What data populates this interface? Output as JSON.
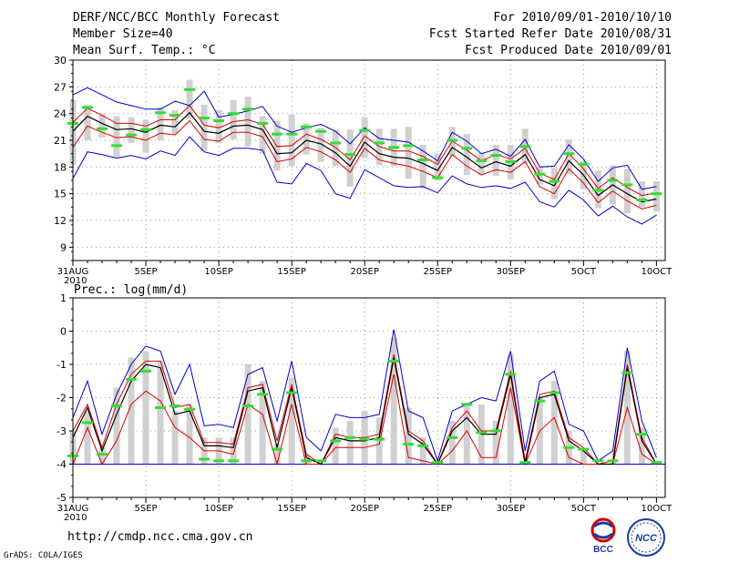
{
  "header": {
    "title": "DERF/NCC/BCC Monthly Forecast",
    "member_size": "Member Size=40",
    "variable": "Mean Surf. Temp.: °C",
    "period": "For 2010/09/01-2010/10/10",
    "fcst_started": "Fcst Started Refer Date 2010/08/31",
    "fcst_produced": "Fcst Produced Date 2010/09/01"
  },
  "footer": {
    "url": "http://cmdp.ncc.cma.gov.cn",
    "grads": "GrADS: COLA/IGES",
    "logo_left_text": "BCC",
    "logo_right_text": "NCC"
  },
  "colors": {
    "mean": "#000000",
    "spread": "#dd0000",
    "envelope": "#0000cc",
    "bar": "#d0d0d0",
    "observed": "#33dd33"
  },
  "chart_data": [
    {
      "type": "line",
      "title": "Mean Surf. Temp.: °C",
      "x_tick_labels": [
        "31AUG\n2010",
        "5SEP",
        "10SEP",
        "15SEP",
        "20SEP",
        "25SEP",
        "30SEP",
        "5OCT",
        "10OCT"
      ],
      "x_ticks_at_day": [
        0,
        5,
        10,
        15,
        20,
        25,
        30,
        35,
        40
      ],
      "ylim": [
        7.5,
        30
      ],
      "y_ticks": [
        9,
        12,
        15,
        18,
        21,
        24,
        27,
        30
      ],
      "grid": true,
      "series": [
        {
          "name": "ensemble_max",
          "values": [
            16.7,
            19.7,
            19.4,
            19.0,
            19.3,
            18.9,
            19.8,
            19.3,
            21.4,
            19.7,
            19.3,
            20.1,
            20.1,
            19.9,
            16.3,
            16.1,
            18.4,
            17.6,
            15.0,
            14.5,
            17.7,
            16.8,
            15.9,
            15.7,
            15.8,
            15.1,
            17.0,
            16.1,
            15.7,
            15.9,
            15.6,
            16.3,
            14.1,
            13.5,
            15.4,
            14.3,
            12.5,
            13.6,
            12.4,
            11.6,
            12.6
          ]
        },
        {
          "name": "ensemble_min",
          "values": [
            26.1,
            26.9,
            26.1,
            25.3,
            24.9,
            24.5,
            24.5,
            25.4,
            24.9,
            26.5,
            23.6,
            23.9,
            24.3,
            24.8,
            22.6,
            21.9,
            22.4,
            22.8,
            22.0,
            20.6,
            22.4,
            21.2,
            21.0,
            20.8,
            19.8,
            18.7,
            21.9,
            20.9,
            19.5,
            20.0,
            19.2,
            21.1,
            18.0,
            18.1,
            20.5,
            18.9,
            16.4,
            17.9,
            18.2,
            15.5,
            15.8
          ]
        },
        {
          "name": "ensemble_mean",
          "values": [
            22.0,
            23.7,
            22.9,
            22.2,
            22.3,
            21.9,
            22.7,
            22.5,
            24.1,
            22.0,
            21.8,
            22.6,
            22.7,
            22.2,
            19.5,
            19.6,
            21.0,
            20.6,
            19.6,
            18.1,
            20.8,
            19.5,
            19.1,
            19.0,
            18.4,
            17.6,
            20.2,
            19.1,
            17.9,
            18.6,
            18.1,
            19.4,
            16.6,
            15.9,
            18.7,
            17.1,
            14.8,
            16.0,
            15.0,
            14.1,
            14.4
          ]
        },
        {
          "name": "spread_upper",
          "values": [
            23.0,
            24.6,
            23.8,
            22.9,
            22.9,
            22.6,
            23.3,
            23.3,
            24.9,
            22.7,
            22.4,
            23.1,
            23.3,
            22.8,
            20.3,
            20.4,
            21.7,
            21.1,
            20.2,
            18.8,
            21.5,
            20.3,
            19.8,
            19.8,
            19.2,
            18.3,
            20.9,
            19.9,
            18.7,
            19.4,
            18.9,
            20.1,
            17.3,
            16.6,
            19.5,
            17.8,
            15.6,
            16.8,
            15.7,
            14.8,
            15.1
          ]
        },
        {
          "name": "spread_lower",
          "values": [
            20.2,
            22.6,
            21.9,
            21.3,
            21.4,
            21.0,
            21.8,
            21.6,
            23.2,
            21.1,
            20.9,
            21.9,
            21.9,
            21.4,
            18.6,
            18.9,
            20.2,
            19.7,
            18.8,
            17.4,
            20.1,
            18.8,
            18.4,
            18.1,
            17.5,
            16.8,
            19.4,
            18.1,
            17.1,
            17.7,
            17.4,
            18.6,
            15.8,
            15.0,
            17.8,
            16.2,
            14.0,
            15.3,
            14.2,
            13.3,
            13.7
          ]
        },
        {
          "name": "bar_top",
          "values": [
            25.5,
            24.9,
            24.0,
            23.7,
            23.6,
            23.3,
            24.7,
            24.4,
            27.8,
            25.0,
            24.4,
            25.5,
            25.9,
            23.7,
            23.2,
            23.9,
            22.9,
            22.4,
            22.2,
            22.2,
            23.6,
            22.3,
            22.3,
            22.5,
            20.5,
            19.5,
            22.5,
            21.7,
            19.6,
            20.5,
            20.5,
            22.3,
            17.9,
            17.9,
            21.1,
            18.7,
            17.6,
            18.2,
            17.8,
            16.4,
            16.4
          ]
        },
        {
          "name": "bar_bottom",
          "values": [
            18.2,
            21.0,
            21.3,
            19.1,
            20.7,
            19.6,
            21.0,
            21.7,
            23.4,
            19.8,
            20.7,
            21.1,
            20.3,
            19.5,
            17.6,
            18.1,
            19.4,
            18.6,
            18.1,
            15.8,
            19.0,
            18.2,
            18.1,
            16.7,
            15.6,
            16.5,
            19.2,
            17.1,
            17.1,
            17.0,
            16.6,
            18.4,
            16.1,
            14.4,
            17.2,
            15.5,
            13.4,
            13.8,
            12.8,
            13.5,
            13.0
          ]
        },
        {
          "name": "observed",
          "values": [
            22.9,
            24.7,
            22.3,
            20.4,
            21.6,
            22.2,
            24.1,
            23.8,
            26.7,
            23.5,
            23.2,
            24.0,
            24.5,
            22.9,
            21.7,
            21.7,
            22.5,
            22.0,
            20.7,
            19.4,
            22.1,
            20.7,
            20.2,
            20.4,
            18.8,
            16.8,
            21.0,
            20.1,
            18.7,
            19.3,
            18.6,
            20.3,
            17.2,
            16.4,
            19.5,
            18.3,
            15.4,
            16.5,
            16.0,
            14.3,
            15.0
          ]
        }
      ]
    },
    {
      "type": "line",
      "title": "Prec.: log(mm/d)",
      "x_tick_labels": [
        "31AUG\n2010",
        "5SEP",
        "10SEP",
        "15SEP",
        "20SEP",
        "25SEP",
        "30SEP",
        "5OCT",
        "10OCT"
      ],
      "x_ticks_at_day": [
        0,
        5,
        10,
        15,
        20,
        25,
        30,
        35,
        40
      ],
      "ylim": [
        -5,
        1
      ],
      "y_ticks": [
        -5,
        -4,
        -3,
        -2,
        -1,
        0,
        1
      ],
      "grid": true,
      "series": [
        {
          "name": "ensemble_max",
          "values": [
            -2.6,
            -1.5,
            -3.1,
            -1.9,
            -1.0,
            -0.45,
            -0.6,
            -1.9,
            -1.0,
            -2.85,
            -2.8,
            -2.9,
            -1.3,
            -1.1,
            -2.7,
            -0.9,
            -3.2,
            -3.6,
            -2.5,
            -2.6,
            -2.6,
            -2.5,
            0.05,
            -2.4,
            -2.6,
            -3.9,
            -2.4,
            -2.2,
            -2.0,
            -2.1,
            -0.6,
            -3.6,
            -1.5,
            -1.2,
            -2.8,
            -3.0,
            -3.9,
            -3.6,
            -0.5,
            -2.7,
            -3.8
          ]
        },
        {
          "name": "ensemble_mean",
          "values": [
            -3.2,
            -2.3,
            -3.6,
            -2.5,
            -1.5,
            -1.0,
            -1.1,
            -2.5,
            -2.4,
            -3.45,
            -3.45,
            -3.5,
            -1.8,
            -1.7,
            -3.5,
            -1.7,
            -3.8,
            -4.0,
            -3.2,
            -3.3,
            -3.3,
            -3.2,
            -0.8,
            -3.1,
            -3.4,
            -4.0,
            -3.0,
            -2.6,
            -3.1,
            -3.1,
            -1.3,
            -4.0,
            -2.0,
            -1.9,
            -3.3,
            -3.6,
            -4.0,
            -4.0,
            -1.1,
            -3.3,
            -4.0
          ]
        },
        {
          "name": "spread_upper",
          "values": [
            -3.0,
            -2.2,
            -3.5,
            -2.2,
            -1.3,
            -0.9,
            -0.9,
            -2.3,
            -2.2,
            -3.35,
            -3.35,
            -3.4,
            -1.7,
            -1.6,
            -3.3,
            -1.6,
            -3.7,
            -4.0,
            -3.1,
            -3.2,
            -3.2,
            -3.1,
            -0.7,
            -3.0,
            -3.3,
            -4.0,
            -2.9,
            -2.4,
            -3.0,
            -3.0,
            -1.2,
            -3.9,
            -1.9,
            -1.8,
            -3.2,
            -3.5,
            -4.0,
            -3.9,
            -1.0,
            -3.2,
            -4.0
          ]
        },
        {
          "name": "spread_lower",
          "values": [
            -4.0,
            -2.9,
            -4.0,
            -3.3,
            -2.2,
            -1.8,
            -2.1,
            -2.9,
            -3.2,
            -3.6,
            -3.6,
            -3.7,
            -2.2,
            -2.5,
            -4.0,
            -2.2,
            -4.0,
            -4.0,
            -3.5,
            -3.5,
            -3.5,
            -3.4,
            -1.3,
            -3.8,
            -3.9,
            -4.0,
            -3.6,
            -3.0,
            -3.8,
            -3.8,
            -1.7,
            -4.0,
            -3.0,
            -2.6,
            -3.8,
            -4.0,
            -4.0,
            -4.0,
            -2.3,
            -3.7,
            -4.0
          ]
        },
        {
          "name": "bar_top",
          "values": [
            -3.0,
            -2.4,
            -3.5,
            -1.7,
            -0.8,
            -0.6,
            -0.9,
            -2.4,
            -2.2,
            -3.2,
            -3.2,
            -3.2,
            -1.0,
            -1.5,
            -3.4,
            -1.4,
            -3.7,
            -4.0,
            -2.9,
            -2.7,
            -2.4,
            -2.6,
            -0.2,
            -2.3,
            -3.2,
            -4.0,
            -2.7,
            -2.2,
            -2.2,
            -2.7,
            -0.7,
            -4.0,
            -2.0,
            -1.5,
            -3.0,
            -3.6,
            -4.0,
            -3.9,
            -0.6,
            -2.9,
            -4.0
          ]
        },
        {
          "name": "observed",
          "values": [
            -3.75,
            -2.75,
            -3.7,
            -2.25,
            -1.45,
            -1.2,
            -2.3,
            -2.25,
            -2.35,
            -3.85,
            -3.9,
            -3.9,
            -2.25,
            -1.9,
            -3.55,
            -1.85,
            -3.9,
            -3.9,
            -3.3,
            -3.2,
            -3.25,
            -3.25,
            -0.9,
            -3.4,
            -3.45,
            -3.95,
            -3.2,
            -2.2,
            -3.05,
            -3.0,
            -1.3,
            -3.95,
            -2.1,
            -1.85,
            -3.5,
            -3.55,
            -3.9,
            -3.9,
            -1.25,
            -3.1,
            -3.95
          ]
        }
      ]
    }
  ]
}
